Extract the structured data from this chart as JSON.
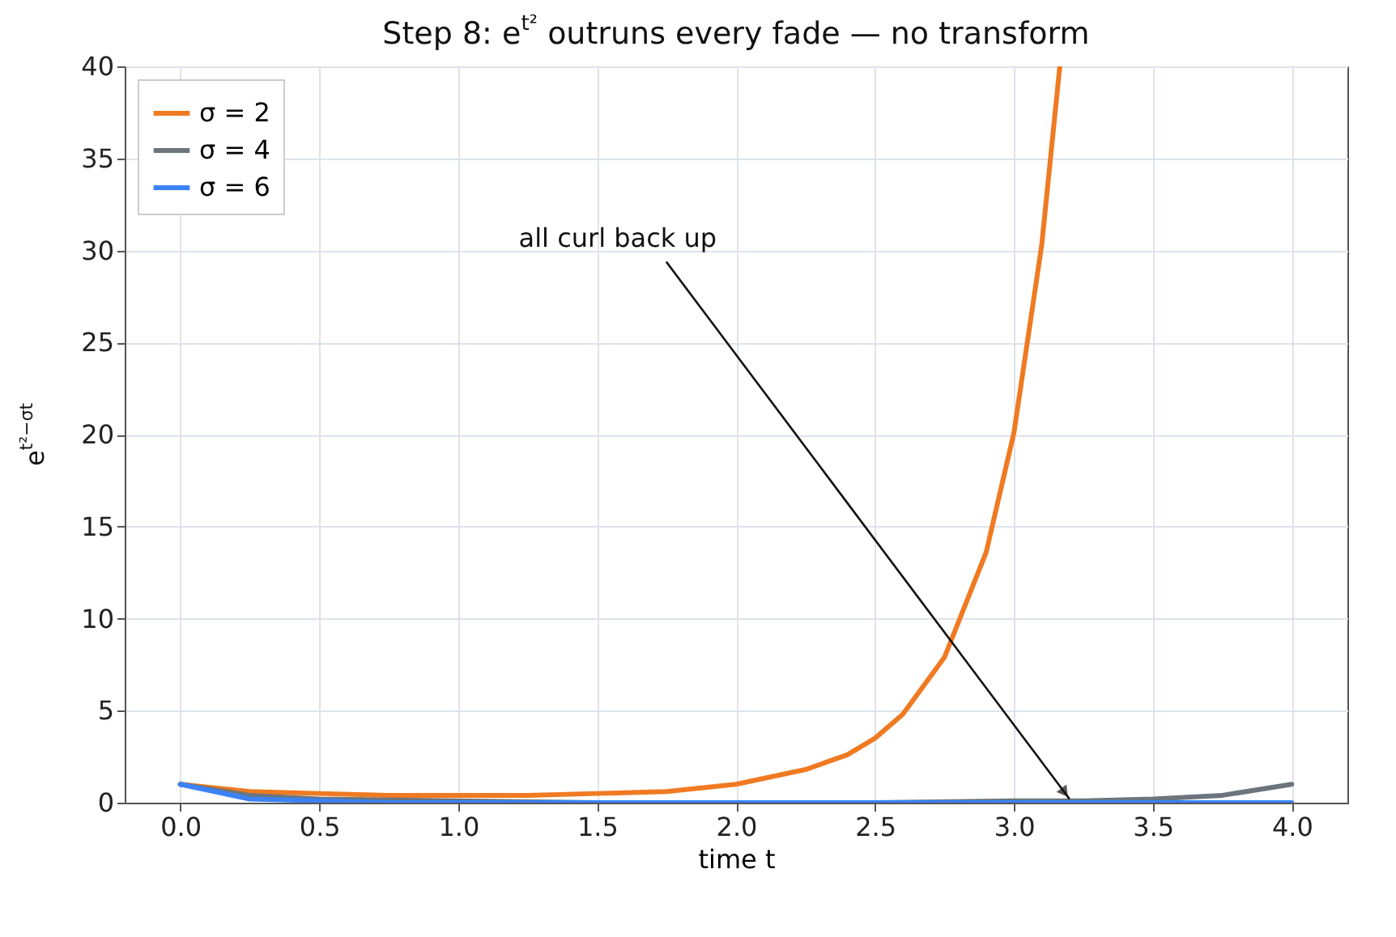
{
  "chart_data": {
    "type": "line",
    "title": "Step 8: e$^{t²}$ outruns every fade — no transform",
    "xlabel": "time  t",
    "ylabel": "e$^{t²−σt}$",
    "xlim": [
      -0.2,
      4.2
    ],
    "xticks": [
      {
        "value": 0,
        "label": "0.0"
      },
      0.5,
      {
        "value": 1,
        "label": "1.0"
      },
      1.5,
      {
        "value": 2,
        "label": "2.0"
      },
      2.5,
      {
        "value": 3,
        "label": "3.0"
      },
      3.5,
      {
        "value": 4,
        "label": "4.0"
      }
    ],
    "ylim": [
      0,
      40
    ],
    "yticks": [
      0,
      5,
      10,
      15,
      20,
      25,
      30,
      35,
      40
    ],
    "grid": true,
    "legend": "top left",
    "marker": "none",
    "line_style": "solid",
    "annotations": [
      {
        "text": "all curl back up",
        "x": 3.2,
        "y": 0.2
      }
    ],
    "series": [
      {
        "name": "σ = 2",
        "color": "#f07a22",
        "x": [
          0,
          0.25,
          0.5,
          0.75,
          1,
          1.25,
          1.5,
          1.75,
          2,
          2.25,
          2.4,
          2.5,
          2.6,
          2.75,
          2.9,
          3,
          3.1,
          3.165
        ],
        "values": [
          1,
          0.6,
          0.5,
          0.4,
          0.4,
          0.4,
          0.5,
          0.6,
          1,
          1.8,
          2.6,
          3.5,
          4.8,
          7.9,
          13.6,
          20.1,
          30.3,
          40
        ]
      },
      {
        "name": "σ = 4",
        "color": "#6c757d",
        "x": [
          0,
          0.25,
          0.5,
          1,
          1.5,
          2,
          2.5,
          3,
          3.25,
          3.5,
          3.75,
          4
        ],
        "values": [
          1,
          0.4,
          0.2,
          0.1,
          0,
          0,
          0,
          0.1,
          0.1,
          0.2,
          0.4,
          1
        ]
      },
      {
        "name": "σ = 6",
        "color": "#3b82f6",
        "x": [
          0,
          0.25,
          0.5,
          0.75,
          1,
          1.5,
          2,
          2.5,
          3,
          3.5,
          4
        ],
        "values": [
          1,
          0.2,
          0.1,
          0,
          0,
          0,
          0,
          0,
          0,
          0,
          0
        ]
      }
    ]
  }
}
